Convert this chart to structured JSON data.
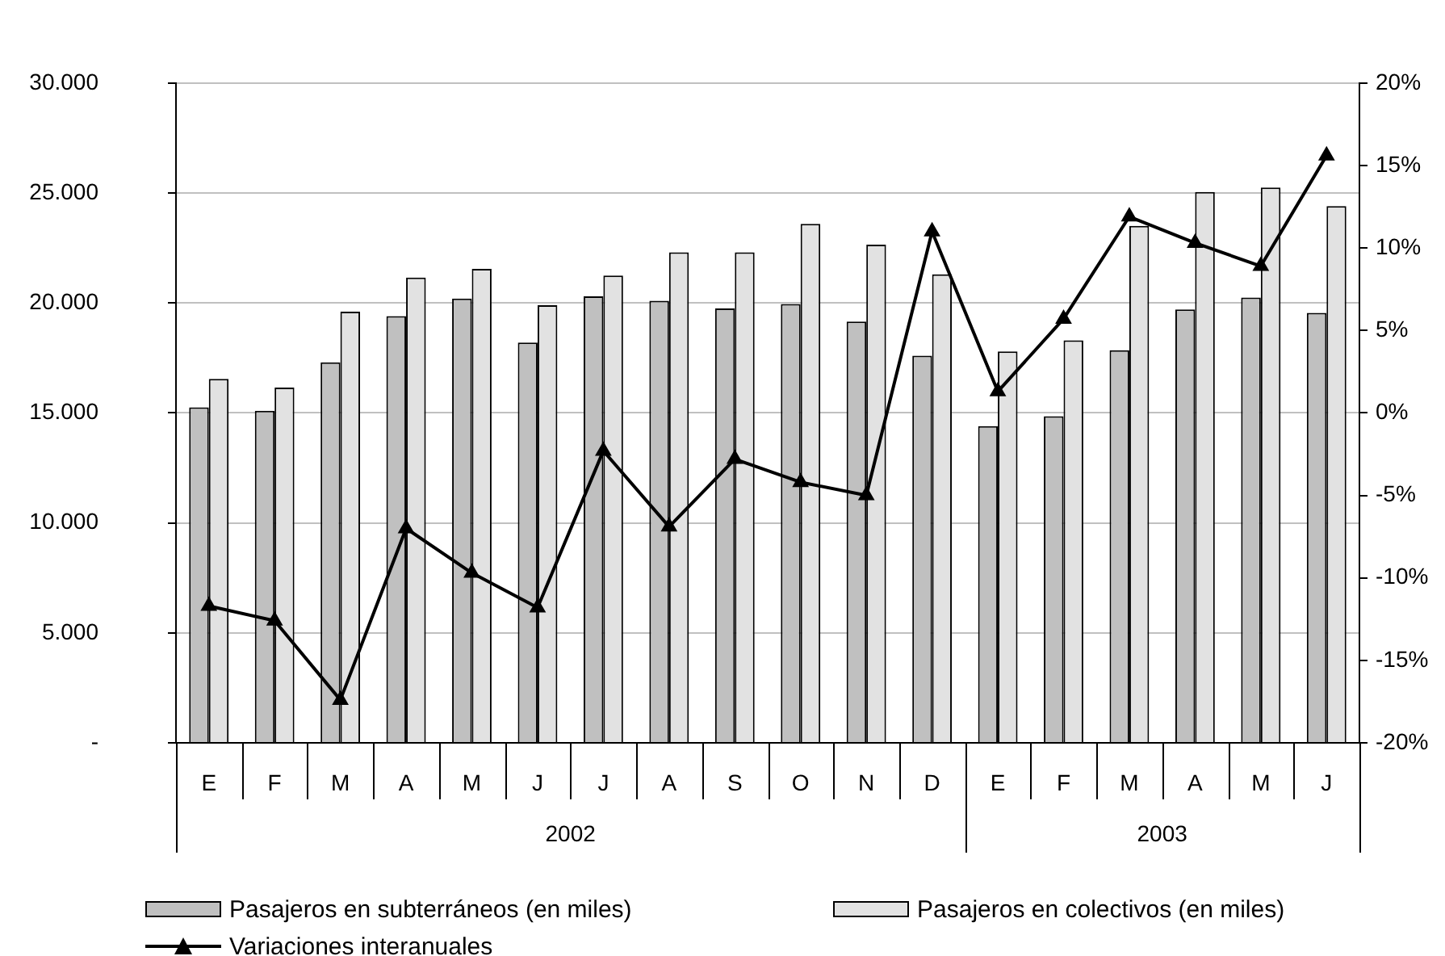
{
  "chart_data": {
    "type": "bar",
    "categories": [
      "E",
      "F",
      "M",
      "A",
      "M",
      "J",
      "J",
      "A",
      "S",
      "O",
      "N",
      "D",
      "E",
      "F",
      "M",
      "A",
      "M",
      "J"
    ],
    "series": [
      {
        "name": "Pasajeros en subterráneos (en miles)",
        "color": "#c0c0c0",
        "values": [
          15250,
          15100,
          17300,
          19400,
          20200,
          18200,
          20300,
          20100,
          19750,
          19950,
          19150,
          17600,
          14400,
          14850,
          17850,
          19700,
          20250,
          19550
        ]
      },
      {
        "name": "Pasajeros en colectivos (en miles)",
        "color": "#e2e2e2",
        "values": [
          16550,
          16150,
          19600,
          21150,
          21550,
          19900,
          21250,
          22300,
          22300,
          23600,
          22650,
          21300,
          17800,
          18300,
          23500,
          25050,
          25250,
          24400
        ]
      },
      {
        "name": "Variaciones interanuales",
        "type": "line",
        "axis": "y2",
        "color": "#000000",
        "values": [
          -11.7,
          -12.6,
          -17.4,
          -7.0,
          -9.7,
          -11.8,
          -2.3,
          -6.9,
          -2.8,
          -4.2,
          -5.0,
          11.0,
          1.3,
          5.7,
          11.9,
          10.3,
          8.9,
          15.6
        ]
      }
    ],
    "ylim": [
      0,
      30000
    ],
    "yticks": [
      {
        "value": 0,
        "label": "-"
      },
      {
        "value": 5000,
        "label": "5.000"
      },
      {
        "value": 10000,
        "label": "10.000"
      },
      {
        "value": 15000,
        "label": "15.000"
      },
      {
        "value": 20000,
        "label": "20.000"
      },
      {
        "value": 25000,
        "label": "25.000"
      },
      {
        "value": 30000,
        "label": "30.000"
      }
    ],
    "y2lim": [
      -20,
      20
    ],
    "y2ticks": [
      {
        "value": -20,
        "label": "-20%"
      },
      {
        "value": -15,
        "label": "-15%"
      },
      {
        "value": -10,
        "label": "-10%"
      },
      {
        "value": -5,
        "label": "-5%"
      },
      {
        "value": 0,
        "label": "0%"
      },
      {
        "value": 5,
        "label": "5%"
      },
      {
        "value": 10,
        "label": "10%"
      },
      {
        "value": 15,
        "label": "15%"
      },
      {
        "value": 20,
        "label": "20%"
      }
    ],
    "annotations": [
      "2002",
      "2003"
    ],
    "grid": "y",
    "legend": "bottom",
    "marker": "triangle",
    "line_style": "solid"
  }
}
